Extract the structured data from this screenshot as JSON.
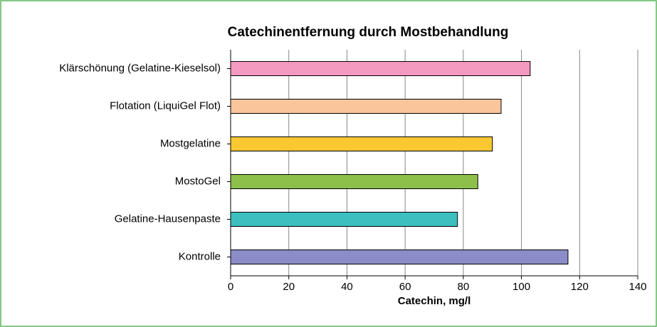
{
  "chart_data": {
    "type": "bar",
    "orientation": "horizontal",
    "title": "Catechinentfernung durch Mostbehandlung",
    "x_label": "Catechin, mg/l",
    "categories": [
      "Klärschönung (Gelatine-Kieselsol)",
      "Flotation (LiquiGel Flot)",
      "Mostgelatine",
      "MostoGel",
      "Gelatine-Hausenpaste",
      "Kontrolle"
    ],
    "values": [
      103,
      93,
      90,
      85,
      78,
      116
    ],
    "colors": [
      "#f49ac1",
      "#fbc59b",
      "#fcc832",
      "#8cc04b",
      "#3dbfbf",
      "#8c8cc8"
    ],
    "xlim": [
      0,
      140
    ],
    "xticks": [
      0,
      20,
      40,
      60,
      80,
      100,
      120,
      140
    ],
    "grid": true
  }
}
